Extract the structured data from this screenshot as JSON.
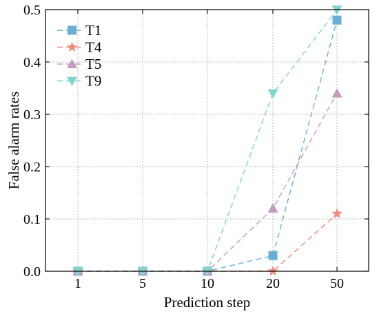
{
  "chart_data": {
    "type": "line",
    "xlabel": "Prediction step",
    "ylabel": "False alarm rates",
    "categories": [
      "1",
      "5",
      "10",
      "20",
      "50"
    ],
    "ylim": [
      0,
      0.5
    ],
    "yticks": [
      0.0,
      0.1,
      0.2,
      0.3,
      0.4,
      0.5
    ],
    "ytick_labels": [
      "0.0",
      "0.1",
      "0.2",
      "0.3",
      "0.4",
      "0.5"
    ],
    "grid": true,
    "legend_position": "top-left",
    "series": [
      {
        "name": "T1",
        "marker": "square",
        "color": "#6aaed6",
        "values": [
          0,
          0,
          0,
          0.03,
          0.48
        ]
      },
      {
        "name": "T4",
        "marker": "star",
        "color": "#f08a7c",
        "values": [
          0,
          0,
          0,
          0,
          0.11
        ]
      },
      {
        "name": "T5",
        "marker": "triangle-up",
        "color": "#c39bc3",
        "values": [
          0,
          0,
          0,
          0.12,
          0.34
        ]
      },
      {
        "name": "T9",
        "marker": "triangle-down",
        "color": "#7fd4cf",
        "values": [
          0,
          0,
          0,
          0.34,
          0.5
        ]
      }
    ]
  }
}
